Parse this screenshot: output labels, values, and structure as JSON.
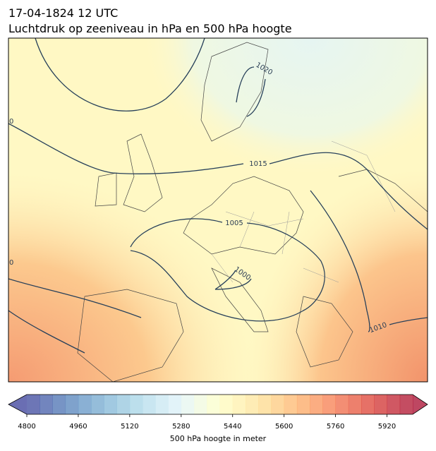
{
  "map": {
    "title": "17-04-1824 12 UTC",
    "subtitle": "Luchtdruk op zeeniveau in hPa en 500 hPa hoogte",
    "contour_labels": [
      "1020",
      "1015",
      "1005",
      "1000",
      "1010",
      "0",
      "0"
    ],
    "colorbar": {
      "label": "500 hPa hoogte in meter",
      "lim": [
        4800,
        6000
      ],
      "step": 40,
      "ticks": [
        4800,
        4960,
        5120,
        5280,
        5440,
        5600,
        5760,
        5920
      ],
      "colormap": [
        "#313695",
        "#4575b4",
        "#74add1",
        "#abd9e9",
        "#e0f3f8",
        "#ffffbf",
        "#fee090",
        "#fdae61",
        "#f46d43",
        "#d73027",
        "#a50026"
      ],
      "alpha": 0.72
    }
  }
}
